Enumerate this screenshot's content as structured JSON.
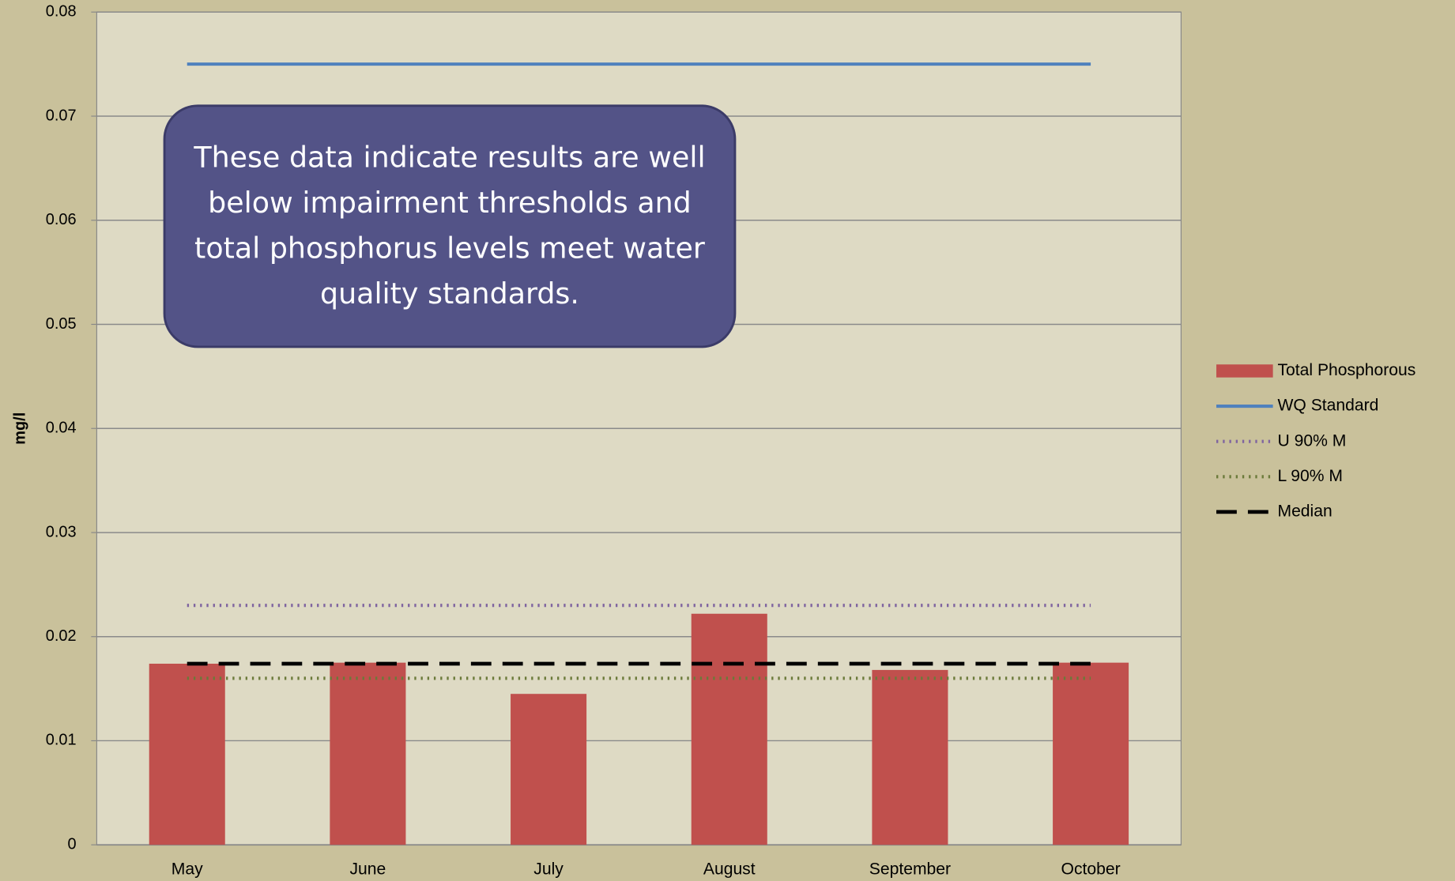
{
  "chart_data": {
    "type": "bar",
    "y_label": "mg/l",
    "annotation": "These data indicate results are well below impairment thresholds and total phosphorus levels meet water quality standards.",
    "categories": [
      "May",
      "June",
      "July",
      "August",
      "September",
      "October"
    ],
    "series": [
      {
        "name": "Total Phosphorous",
        "type": "bar",
        "color": "#c0504d",
        "values": [
          0.0174,
          0.0175,
          0.0145,
          0.0222,
          0.0168,
          0.0175
        ]
      },
      {
        "name": "WQ Standard",
        "type": "line",
        "style": "solid",
        "color": "#4f81bd",
        "values": [
          0.075,
          0.075,
          0.075,
          0.075,
          0.075,
          0.075
        ]
      },
      {
        "name": "U 90% M",
        "type": "line",
        "style": "dotted",
        "color": "#7f64a0",
        "values": [
          0.023,
          0.023,
          0.023,
          0.023,
          0.023,
          0.023
        ]
      },
      {
        "name": "L 90% M",
        "type": "line",
        "style": "dotted",
        "color": "#6b7a3a",
        "values": [
          0.016,
          0.016,
          0.016,
          0.016,
          0.016,
          0.016
        ]
      },
      {
        "name": "Median",
        "type": "line",
        "style": "dashed",
        "color": "#000000",
        "values": [
          0.0174,
          0.0174,
          0.0174,
          0.0174,
          0.0174,
          0.0174
        ]
      }
    ],
    "ylim": [
      0,
      0.08
    ],
    "yticks": [
      0,
      0.01,
      0.02,
      0.03,
      0.04,
      0.05,
      0.06,
      0.07,
      0.08
    ],
    "grid": true,
    "legend": "right"
  }
}
